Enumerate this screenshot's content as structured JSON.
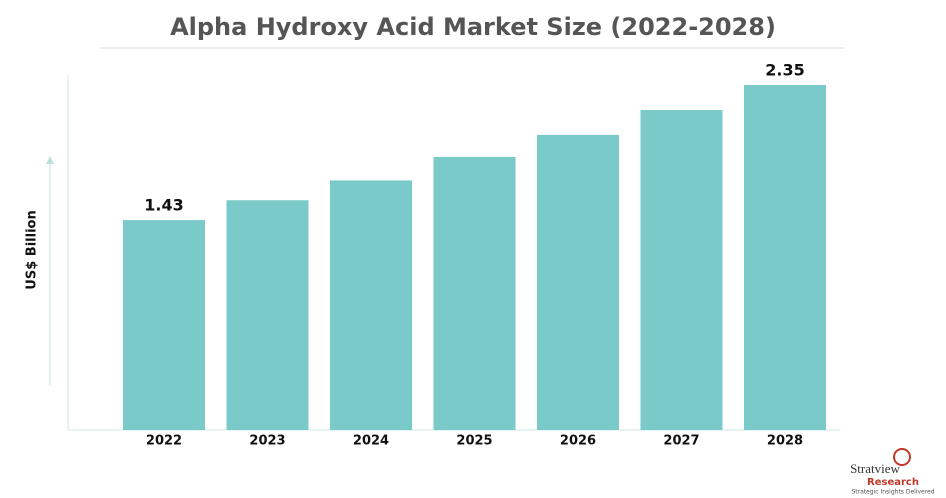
{
  "chart_data": {
    "type": "bar",
    "title": "Alpha Hydroxy Acid Market Size (2022-2028)",
    "y_label": "US$ Billion",
    "categories": [
      "2022",
      "2023",
      "2024",
      "2025",
      "2026",
      "2027",
      "2028"
    ],
    "values": [
      1.43,
      1.565,
      1.7,
      1.86,
      2.01,
      2.18,
      2.35
    ],
    "value_labels": [
      "1.43",
      null,
      null,
      null,
      null,
      null,
      "2.35"
    ],
    "color": "#79cac8",
    "ylim": [
      0,
      2.5
    ],
    "grid": false
  },
  "logo": {
    "name": "Stratview",
    "sub": "Research",
    "tagline": "Strategic Insights Delivered"
  }
}
